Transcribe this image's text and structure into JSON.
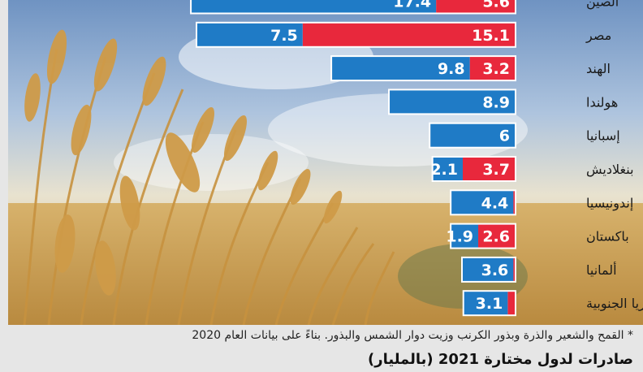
{
  "chart_data": {
    "type": "bar",
    "orientation": "horizontal-stacked",
    "categories": [
      "الصين",
      "مصر",
      "الهند",
      "هولندا",
      "إسبانيا",
      "بنغلاديش",
      "إندونيسيا",
      "باكستان",
      "ألمانيا",
      "كوريا الجنوبية"
    ],
    "series": [
      {
        "color": "#1f7bc6",
        "values": [
          17.4,
          7.5,
          9.8,
          8.9,
          6,
          2.1,
          4.4,
          1.9,
          3.6,
          3.1
        ]
      },
      {
        "color": "#e8283c",
        "values": [
          5.6,
          15.1,
          3.2,
          0,
          0,
          3.7,
          0.1,
          2.6,
          0.1,
          0.5
        ]
      }
    ],
    "labels_shown": [
      [
        "17.4",
        "5.6"
      ],
      [
        "7.5",
        "15.1"
      ],
      [
        "9.8",
        "3.2"
      ],
      [
        "8.9",
        ""
      ],
      [
        "6",
        ""
      ],
      [
        "2.1",
        "3.7"
      ],
      [
        "4.4",
        ""
      ],
      [
        "1.9",
        "2.6"
      ],
      [
        "3.6",
        ""
      ],
      [
        "3.1",
        ""
      ]
    ]
  },
  "footnote": "* القمح والشعير والذرة وبذور الكرنب وزيت دوار الشمس والبذور. بناءً على بيانات العام 2020",
  "subtitle": "صادرات لدول مختارة 2021 (بالمليار)"
}
